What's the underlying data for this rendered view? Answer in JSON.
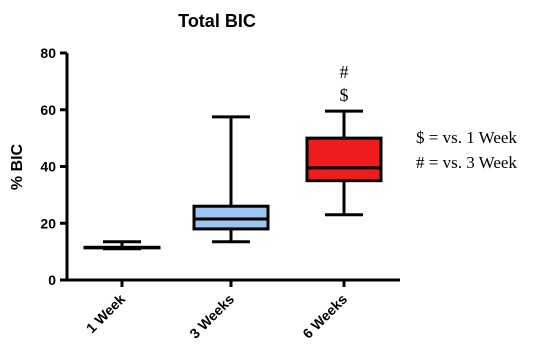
{
  "chart_data": {
    "type": "box",
    "title": "Total BIC",
    "ylabel": "% BIC",
    "xlabel": "",
    "ylim": [
      0,
      80
    ],
    "yticks": [
      0,
      20,
      40,
      60,
      80
    ],
    "categories": [
      "1 Week",
      "3 Weeks",
      "6 Weeks"
    ],
    "boxes": [
      {
        "category": "1 Week",
        "min": 11,
        "q1": 11.5,
        "median": 11.5,
        "q3": 11.5,
        "max": 13.5,
        "color": "#ffffff"
      },
      {
        "category": "3 Weeks",
        "min": 13.5,
        "q1": 18,
        "median": 21.5,
        "q3": 26,
        "max": 57.5,
        "color": "#9dc3f0"
      },
      {
        "category": "6 Weeks",
        "min": 23,
        "q1": 35,
        "median": 39.5,
        "q3": 50,
        "max": 59.5,
        "color": "#ee1c1c"
      }
    ],
    "annotations": [
      {
        "category": "6 Weeks",
        "text": "#"
      },
      {
        "category": "6 Weeks",
        "text": "$"
      }
    ],
    "legend_notes": [
      "$ = vs. 1 Week",
      "# = vs. 3 Week"
    ],
    "legend_position": "right",
    "grid": false
  }
}
